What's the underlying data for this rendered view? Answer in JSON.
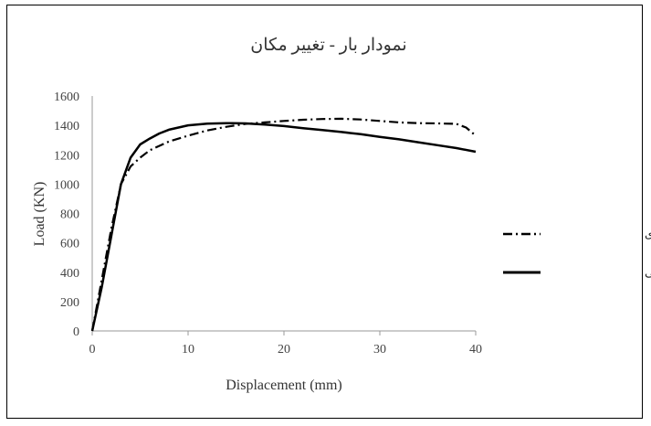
{
  "chart_data": {
    "type": "line",
    "title": "نمودار بار - تغییر مکان",
    "xlabel": "Displacement (mm)",
    "ylabel": "Load (KN)",
    "xlim": [
      0,
      40
    ],
    "ylim": [
      0,
      1600
    ],
    "xticks": [
      0,
      10,
      20,
      30,
      40
    ],
    "yticks": [
      0,
      200,
      400,
      600,
      800,
      1000,
      1200,
      1400,
      1600
    ],
    "grid": false,
    "legend_position": "right",
    "series": [
      {
        "name": "نمونه عددی",
        "style": "dash-dot",
        "color": "#000000",
        "x": [
          0,
          1,
          2,
          3,
          4,
          5,
          6,
          8,
          10,
          12,
          14,
          16,
          18,
          20,
          22,
          24,
          26,
          28,
          30,
          32,
          34,
          36,
          38,
          39,
          40
        ],
        "y": [
          0,
          350,
          700,
          1000,
          1120,
          1180,
          1230,
          1290,
          1330,
          1365,
          1390,
          1410,
          1420,
          1430,
          1438,
          1443,
          1445,
          1440,
          1430,
          1420,
          1415,
          1413,
          1410,
          1385,
          1330
        ]
      },
      {
        "name": "نمونه آزمایشگاهی",
        "style": "solid",
        "color": "#000000",
        "x": [
          0,
          1,
          2,
          3,
          4,
          5,
          6,
          7,
          8,
          10,
          12,
          14,
          16,
          18,
          20,
          22,
          24,
          26,
          28,
          30,
          32,
          34,
          36,
          38,
          40
        ],
        "y": [
          0,
          300,
          650,
          1000,
          1180,
          1270,
          1310,
          1345,
          1370,
          1400,
          1412,
          1415,
          1413,
          1405,
          1395,
          1380,
          1368,
          1355,
          1340,
          1322,
          1305,
          1285,
          1265,
          1245,
          1220
        ]
      }
    ]
  }
}
